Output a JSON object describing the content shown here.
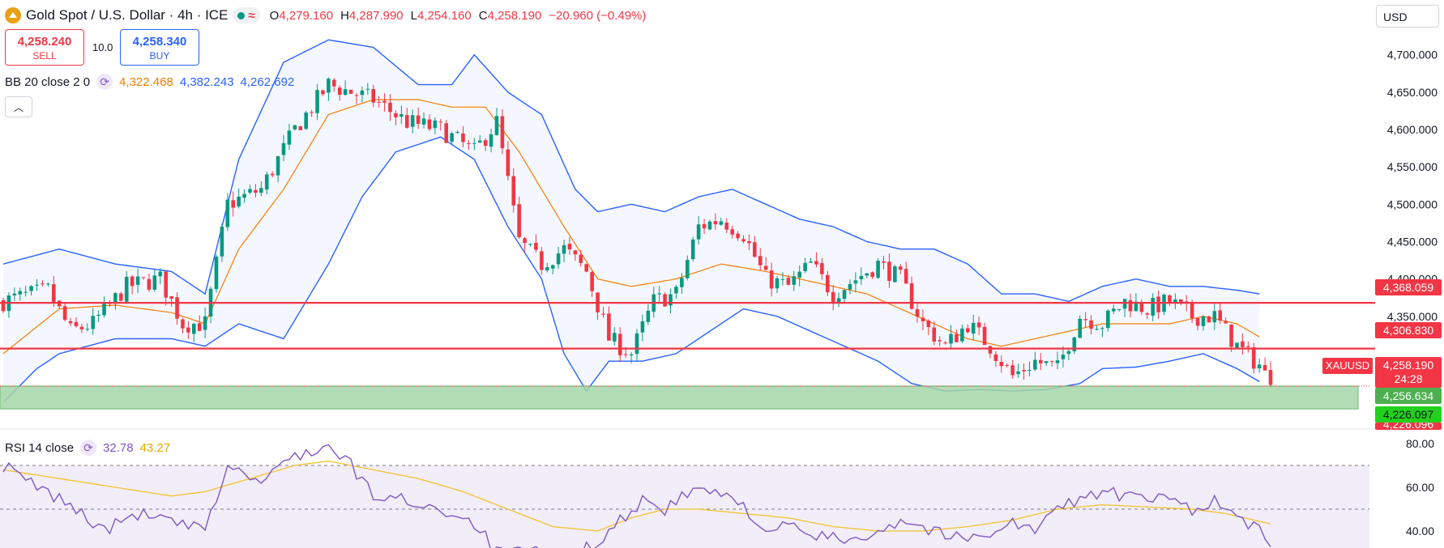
{
  "header": {
    "title": "Gold Spot / U.S. Dollar · 4h · ICE",
    "ohlc": [
      {
        "label": "O",
        "value": "4,279.160"
      },
      {
        "label": "H",
        "value": "4,287.990"
      },
      {
        "label": "L",
        "value": "4,254.160"
      },
      {
        "label": "C",
        "value": "4,258.190"
      }
    ],
    "change": "−20.960 (−0.49%)",
    "logo_icon": "gold-coin-icon",
    "status_icons": [
      "market-open-dot-icon",
      "wave-icon"
    ]
  },
  "trade": {
    "sell_price": "4,258.240",
    "sell_label": "SELL",
    "buy_price": "4,258.340",
    "buy_label": "BUY",
    "spread": "10.0"
  },
  "currency": "USD",
  "indicators": {
    "bb": {
      "label": "BB 20 close 2 0",
      "basis": "4,322.468",
      "upper": "4,382.243",
      "lower": "4,262.692"
    },
    "rsi": {
      "label": "RSI 14 close",
      "value": "32.78",
      "ma": "43.27"
    }
  },
  "price_labels": {
    "level1": "4,368.059",
    "level2": "4,306.830",
    "symbol": "XAUUSD",
    "last": "4,258.190",
    "countdown": "24:28",
    "zone_top": "4,256.634",
    "zone_bottom": "4,226.097",
    "cut": "4,226.096"
  },
  "colors": {
    "up": "#089981",
    "down": "#f23645",
    "bb_band": "#2962ff",
    "bb_basis": "#f57c00",
    "rsi": "#7e57c2",
    "rsi_ma": "#f2c12e",
    "zone": "#a5d6a7",
    "level": "#f23645"
  },
  "chart_data": [
    {
      "type": "candlestick",
      "title": "",
      "y_ticks": [
        "4,700.000",
        "4,650.000",
        "4,600.000",
        "4,550.000",
        "4,500.000",
        "4,450.000",
        "4,400.000",
        "4,350.000"
      ],
      "ylim": [
        4210,
        4730
      ],
      "horizontal_lines": [
        4368.059,
        4306.83
      ],
      "zone": [
        4226.097,
        4256.634
      ],
      "waypoints": [
        [
          0,
          4370
        ],
        [
          8,
          4385
        ],
        [
          12,
          4330
        ],
        [
          16,
          4340
        ],
        [
          22,
          4390
        ],
        [
          28,
          4400
        ],
        [
          32,
          4340
        ],
        [
          36,
          4340
        ],
        [
          40,
          4500
        ],
        [
          46,
          4520
        ],
        [
          52,
          4600
        ],
        [
          58,
          4660
        ],
        [
          62,
          4650
        ],
        [
          66,
          4640
        ],
        [
          72,
          4610
        ],
        [
          78,
          4600
        ],
        [
          84,
          4570
        ],
        [
          88,
          4610
        ],
        [
          92,
          4450
        ],
        [
          96,
          4420
        ],
        [
          100,
          4440
        ],
        [
          104,
          4410
        ],
        [
          108,
          4320
        ],
        [
          112,
          4300
        ],
        [
          116,
          4370
        ],
        [
          120,
          4380
        ],
        [
          124,
          4470
        ],
        [
          128,
          4480
        ],
        [
          132,
          4460
        ],
        [
          136,
          4400
        ],
        [
          140,
          4390
        ],
        [
          144,
          4420
        ],
        [
          148,
          4380
        ],
        [
          152,
          4400
        ],
        [
          156,
          4420
        ],
        [
          160,
          4400
        ],
        [
          164,
          4340
        ],
        [
          168,
          4310
        ],
        [
          172,
          4340
        ],
        [
          176,
          4310
        ],
        [
          180,
          4270
        ],
        [
          184,
          4290
        ],
        [
          188,
          4280
        ],
        [
          192,
          4350
        ],
        [
          196,
          4340
        ],
        [
          200,
          4370
        ],
        [
          204,
          4360
        ],
        [
          208,
          4370
        ],
        [
          212,
          4350
        ],
        [
          216,
          4350
        ],
        [
          220,
          4310
        ],
        [
          224,
          4285
        ],
        [
          226,
          4258.19
        ]
      ],
      "candle_count": 227,
      "bb_upper_waypoints": [
        [
          0,
          4420
        ],
        [
          10,
          4440
        ],
        [
          20,
          4420
        ],
        [
          30,
          4410
        ],
        [
          36,
          4380
        ],
        [
          42,
          4560
        ],
        [
          50,
          4690
        ],
        [
          58,
          4720
        ],
        [
          66,
          4710
        ],
        [
          74,
          4660
        ],
        [
          80,
          4660
        ],
        [
          84,
          4700
        ],
        [
          90,
          4650
        ],
        [
          96,
          4620
        ],
        [
          102,
          4520
        ],
        [
          106,
          4490
        ],
        [
          112,
          4500
        ],
        [
          118,
          4490
        ],
        [
          124,
          4510
        ],
        [
          130,
          4520
        ],
        [
          136,
          4500
        ],
        [
          142,
          4480
        ],
        [
          148,
          4470
        ],
        [
          154,
          4450
        ],
        [
          160,
          4440
        ],
        [
          166,
          4440
        ],
        [
          172,
          4420
        ],
        [
          178,
          4380
        ],
        [
          184,
          4380
        ],
        [
          190,
          4370
        ],
        [
          196,
          4390
        ],
        [
          202,
          4400
        ],
        [
          208,
          4390
        ],
        [
          214,
          4390
        ],
        [
          220,
          4385
        ],
        [
          224,
          4380
        ]
      ],
      "bb_lower_waypoints": [
        [
          0,
          4235
        ],
        [
          6,
          4280
        ],
        [
          10,
          4300
        ],
        [
          20,
          4320
        ],
        [
          30,
          4320
        ],
        [
          36,
          4310
        ],
        [
          42,
          4340
        ],
        [
          50,
          4320
        ],
        [
          58,
          4420
        ],
        [
          64,
          4510
        ],
        [
          70,
          4570
        ],
        [
          78,
          4590
        ],
        [
          84,
          4560
        ],
        [
          90,
          4470
        ],
        [
          96,
          4400
        ],
        [
          100,
          4300
        ],
        [
          104,
          4250
        ],
        [
          108,
          4290
        ],
        [
          114,
          4290
        ],
        [
          120,
          4300
        ],
        [
          126,
          4330
        ],
        [
          132,
          4360
        ],
        [
          138,
          4350
        ],
        [
          144,
          4330
        ],
        [
          150,
          4310
        ],
        [
          156,
          4290
        ],
        [
          162,
          4260
        ],
        [
          168,
          4250
        ],
        [
          174,
          4252
        ],
        [
          180,
          4250
        ],
        [
          186,
          4252
        ],
        [
          192,
          4260
        ],
        [
          196,
          4280
        ],
        [
          202,
          4282
        ],
        [
          208,
          4290
        ],
        [
          214,
          4300
        ],
        [
          220,
          4280
        ],
        [
          224,
          4262.692
        ]
      ],
      "bb_basis_waypoints": [
        [
          0,
          4300
        ],
        [
          10,
          4360
        ],
        [
          20,
          4365
        ],
        [
          30,
          4355
        ],
        [
          36,
          4340
        ],
        [
          42,
          4440
        ],
        [
          50,
          4520
        ],
        [
          58,
          4620
        ],
        [
          66,
          4640
        ],
        [
          74,
          4640
        ],
        [
          80,
          4630
        ],
        [
          86,
          4630
        ],
        [
          92,
          4570
        ],
        [
          100,
          4470
        ],
        [
          106,
          4400
        ],
        [
          112,
          4390
        ],
        [
          120,
          4400
        ],
        [
          128,
          4420
        ],
        [
          136,
          4410
        ],
        [
          142,
          4400
        ],
        [
          148,
          4390
        ],
        [
          154,
          4380
        ],
        [
          160,
          4360
        ],
        [
          166,
          4340
        ],
        [
          172,
          4320
        ],
        [
          178,
          4310
        ],
        [
          184,
          4320
        ],
        [
          190,
          4330
        ],
        [
          196,
          4340
        ],
        [
          202,
          4340
        ],
        [
          208,
          4340
        ],
        [
          214,
          4350
        ],
        [
          220,
          4340
        ],
        [
          224,
          4322.468
        ]
      ]
    },
    {
      "type": "line",
      "title": "",
      "y_ticks": [
        "80.00",
        "60.00",
        "40.00"
      ],
      "ylim": [
        30,
        80
      ],
      "levels": [
        70,
        50
      ],
      "rsi_waypoints": [
        [
          0,
          70
        ],
        [
          6,
          60
        ],
        [
          12,
          52
        ],
        [
          18,
          40
        ],
        [
          24,
          48
        ],
        [
          30,
          44
        ],
        [
          36,
          40
        ],
        [
          40,
          70
        ],
        [
          46,
          62
        ],
        [
          52,
          75
        ],
        [
          58,
          78
        ],
        [
          62,
          70
        ],
        [
          66,
          56
        ],
        [
          72,
          54
        ],
        [
          78,
          50
        ],
        [
          84,
          44
        ],
        [
          88,
          30
        ],
        [
          96,
          30
        ],
        [
          102,
          28
        ],
        [
          108,
          40
        ],
        [
          114,
          54
        ],
        [
          118,
          50
        ],
        [
          124,
          60
        ],
        [
          128,
          56
        ],
        [
          132,
          52
        ],
        [
          136,
          40
        ],
        [
          140,
          42
        ],
        [
          144,
          38
        ],
        [
          150,
          36
        ],
        [
          156,
          40
        ],
        [
          160,
          45
        ],
        [
          164,
          42
        ],
        [
          168,
          38
        ],
        [
          172,
          36
        ],
        [
          176,
          40
        ],
        [
          180,
          44
        ],
        [
          184,
          40
        ],
        [
          188,
          50
        ],
        [
          192,
          55
        ],
        [
          196,
          58
        ],
        [
          200,
          56
        ],
        [
          204,
          54
        ],
        [
          208,
          55
        ],
        [
          212,
          50
        ],
        [
          216,
          54
        ],
        [
          220,
          46
        ],
        [
          224,
          40
        ],
        [
          226,
          32.78
        ]
      ],
      "rsi_ma_waypoints": [
        [
          0,
          68
        ],
        [
          10,
          64
        ],
        [
          20,
          60
        ],
        [
          30,
          56
        ],
        [
          36,
          58
        ],
        [
          44,
          64
        ],
        [
          52,
          70
        ],
        [
          58,
          72
        ],
        [
          66,
          68
        ],
        [
          74,
          64
        ],
        [
          82,
          58
        ],
        [
          90,
          50
        ],
        [
          98,
          42
        ],
        [
          106,
          40
        ],
        [
          112,
          46
        ],
        [
          118,
          50
        ],
        [
          124,
          50
        ],
        [
          132,
          48
        ],
        [
          140,
          46
        ],
        [
          148,
          42
        ],
        [
          156,
          40
        ],
        [
          164,
          40
        ],
        [
          172,
          42
        ],
        [
          180,
          45
        ],
        [
          188,
          50
        ],
        [
          196,
          52
        ],
        [
          204,
          51
        ],
        [
          212,
          50
        ],
        [
          218,
          48
        ],
        [
          226,
          43.27
        ]
      ]
    }
  ]
}
